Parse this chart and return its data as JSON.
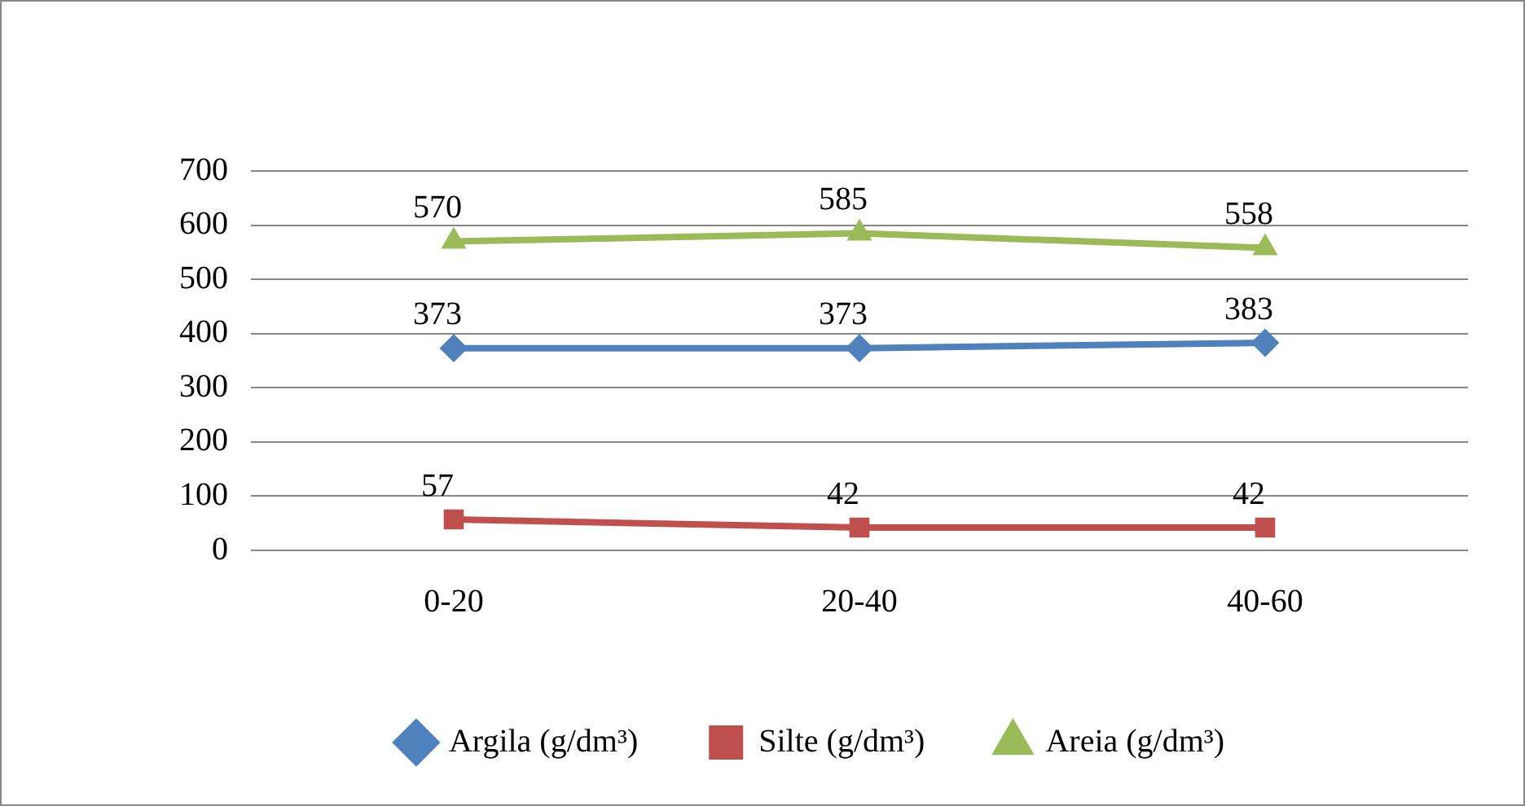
{
  "chart_data": {
    "type": "line",
    "categories": [
      "0-20",
      "20-40",
      "40-60"
    ],
    "series": [
      {
        "name": "Argila (g/dm³)",
        "color": "#4f81bd",
        "values": [
          373,
          373,
          383
        ],
        "marker": "diamond"
      },
      {
        "name": "Silte (g/dm³)",
        "color": "#c0504d",
        "values": [
          57,
          42,
          42
        ],
        "marker": "square"
      },
      {
        "name": "Areia (g/dm³)",
        "color": "#9bbb59",
        "values": [
          570,
          585,
          558
        ],
        "marker": "triangle"
      }
    ],
    "ylim": [
      0,
      700
    ],
    "yticks": [
      0,
      100,
      200,
      300,
      400,
      500,
      600,
      700
    ],
    "grid": "y",
    "legend": "bottom",
    "data_labels": true,
    "line_style": "solid"
  }
}
